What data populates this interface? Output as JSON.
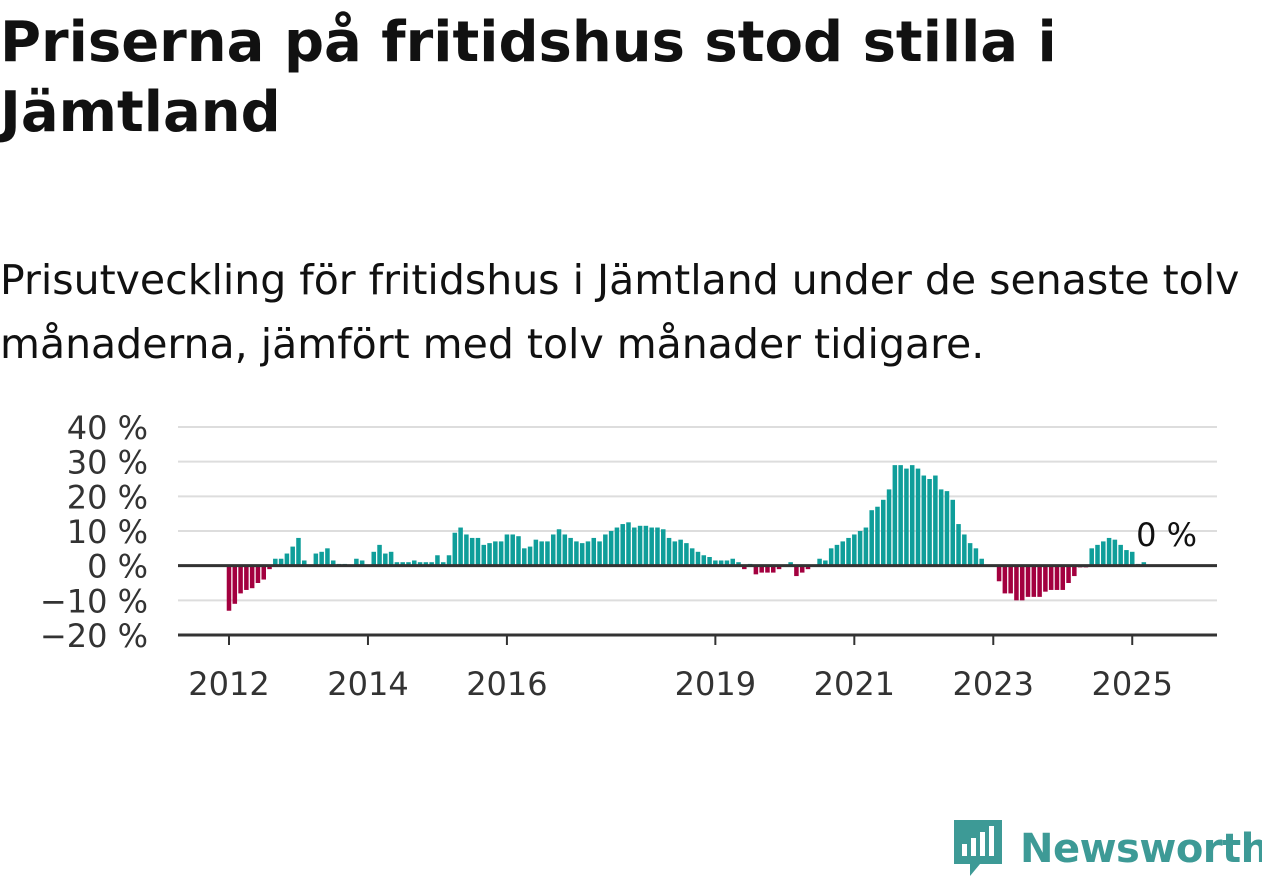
{
  "title": "Priserna på fritidshus stod stilla i Jämtland",
  "subtitle": "Prisutveckling för fritidshus i Jämtland under de senaste tolv månaderna, jämfört med tolv månader tidigare.",
  "brand": {
    "name": "Newsworthy",
    "icon": "newsworthy-logo-icon",
    "color": "#3d9a96"
  },
  "chart_data": {
    "type": "bar",
    "y_ticks": [
      "40 %",
      "30 %",
      "20 %",
      "10 %",
      "0 %",
      "−10 %",
      "−20 %"
    ],
    "y_tick_values": [
      40,
      30,
      20,
      10,
      0,
      -10,
      -20
    ],
    "ylim": [
      -20,
      40
    ],
    "x_tick_labels": [
      "2012",
      "2014",
      "2016",
      "2019",
      "2021",
      "2023",
      "2025"
    ],
    "x_tick_values": [
      2012,
      2014,
      2016,
      2019,
      2021,
      2023,
      2025
    ],
    "grid": true,
    "colors": {
      "positive": "#0f9e9a",
      "negative": "#a3003f",
      "grid": "#dddddd",
      "axis": "#333333"
    },
    "last_value_label": "0 %",
    "start": "2012-01",
    "end": "2025-07",
    "values": [
      -13,
      -11,
      -8,
      -7,
      -6.5,
      -5,
      -4,
      -1,
      2,
      2,
      3.5,
      5.5,
      8,
      1.5,
      0,
      3.5,
      4,
      5,
      1.5,
      0.5,
      0.5,
      0,
      2,
      1.5,
      0,
      4,
      6,
      3.5,
      4,
      1,
      1,
      1,
      1.5,
      1,
      1,
      1,
      3,
      1,
      3,
      9.5,
      11,
      9,
      8,
      8,
      6,
      6.5,
      7,
      7,
      9,
      9,
      8.5,
      5,
      5.5,
      7.5,
      7,
      7,
      9,
      10.5,
      9,
      8,
      7,
      6.5,
      7,
      8,
      7,
      9,
      10,
      11,
      12,
      12.5,
      11,
      11.5,
      11.5,
      11,
      11,
      10.5,
      8,
      7,
      7.5,
      6.5,
      5,
      4,
      3,
      2.5,
      1.5,
      1.5,
      1.5,
      2,
      1,
      -1,
      0.5,
      -2.5,
      -2,
      -2,
      -2,
      -1,
      0,
      1,
      -3,
      -2,
      -1,
      0,
      2,
      1.5,
      5,
      6,
      7,
      8,
      9,
      10,
      11,
      16,
      17,
      19,
      22,
      29,
      29,
      28,
      29,
      28,
      26,
      25,
      26,
      22,
      21.5,
      19,
      12,
      9,
      6.5,
      5,
      2,
      0,
      0,
      -4.5,
      -8,
      -8,
      -10,
      -10,
      -9,
      -9,
      -9,
      -7.5,
      -7,
      -7,
      -7,
      -5,
      -3,
      -0.5,
      -0.5,
      5,
      6,
      7,
      8,
      7.5,
      6,
      4.5,
      4,
      0.5,
      1,
      0
    ]
  }
}
